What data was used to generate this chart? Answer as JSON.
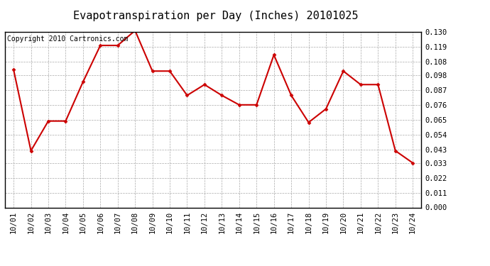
{
  "title": "Evapotranspiration per Day (Inches) 20101025",
  "copyright": "Copyright 2010 Cartronics.com",
  "x_labels": [
    "10/01",
    "10/02",
    "10/03",
    "10/04",
    "10/05",
    "10/06",
    "10/07",
    "10/08",
    "10/09",
    "10/10",
    "10/11",
    "10/12",
    "10/13",
    "10/14",
    "10/15",
    "10/16",
    "10/17",
    "10/18",
    "10/19",
    "10/20",
    "10/21",
    "10/22",
    "10/23",
    "10/24"
  ],
  "y_values": [
    0.102,
    0.042,
    0.064,
    0.064,
    0.093,
    0.12,
    0.12,
    0.131,
    0.101,
    0.101,
    0.083,
    0.091,
    0.083,
    0.076,
    0.076,
    0.113,
    0.083,
    0.063,
    0.073,
    0.101,
    0.091,
    0.091,
    0.042,
    0.033
  ],
  "line_color": "#cc0000",
  "marker": "D",
  "marker_size": 2.5,
  "bg_color": "#ffffff",
  "plot_bg_color": "#ffffff",
  "grid_color": "#aaaaaa",
  "y_min": 0.0,
  "y_max": 0.13,
  "y_ticks": [
    0.0,
    0.011,
    0.022,
    0.033,
    0.043,
    0.054,
    0.065,
    0.076,
    0.087,
    0.098,
    0.108,
    0.119,
    0.13
  ],
  "title_fontsize": 11,
  "copyright_fontsize": 7,
  "tick_fontsize": 7.5,
  "border_color": "#000000",
  "linewidth": 1.5
}
